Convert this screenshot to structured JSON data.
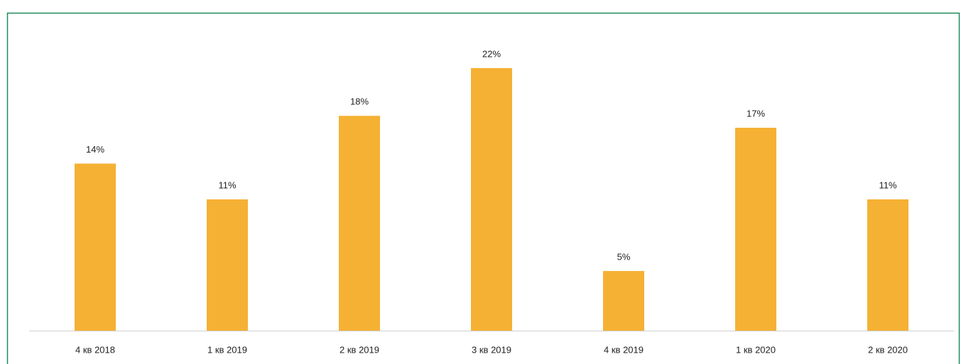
{
  "chart_data": {
    "type": "bar",
    "categories": [
      "4 кв 2018",
      "1 кв 2019",
      "2 кв 2019",
      "3 кв 2019",
      "4 кв 2019",
      "1 кв 2020",
      "2 кв 2020"
    ],
    "values": [
      14,
      11,
      18,
      22,
      5,
      17,
      11
    ],
    "value_labels": [
      "14%",
      "11%",
      "18%",
      "22%",
      "5%",
      "17%",
      "11%"
    ],
    "color": "#f5b133"
  }
}
